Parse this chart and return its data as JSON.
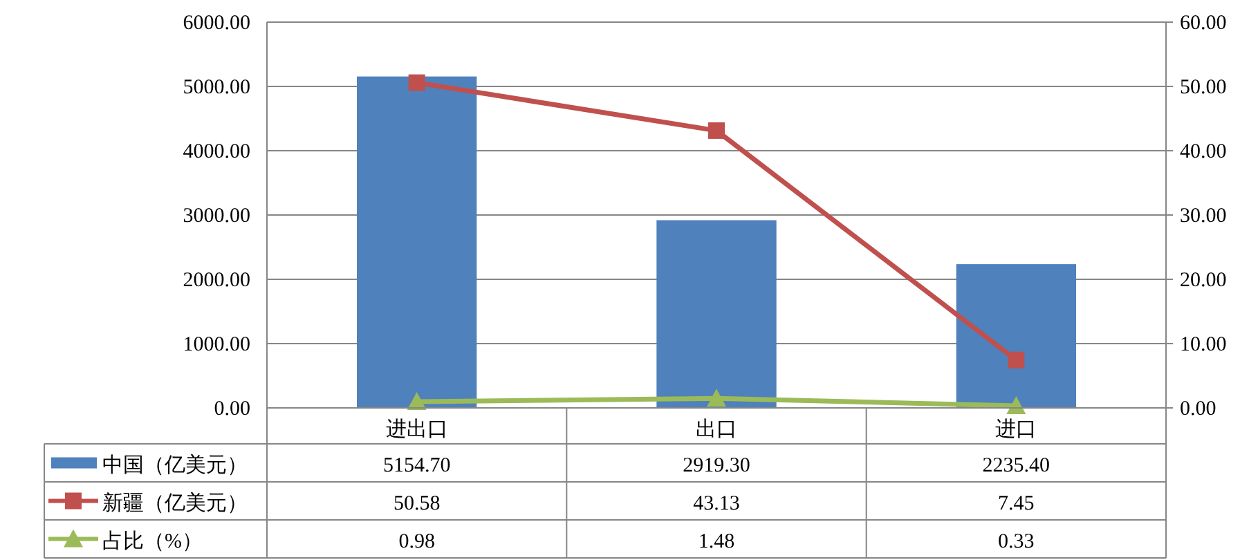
{
  "chart_data": {
    "type": "bar",
    "categories": [
      "进出口",
      "出口",
      "进口"
    ],
    "series": [
      {
        "name": "中国（亿美元）",
        "color": "#4f81bd",
        "values": [
          5154.7,
          2919.3,
          2235.4
        ],
        "value_labels": [
          "5154.70",
          "2919.30",
          "2235.40"
        ]
      },
      {
        "name": "新疆（亿美元）",
        "type": "line",
        "axis": "y2",
        "marker": "square",
        "color": "#c0504d",
        "values": [
          50.58,
          43.13,
          7.45
        ],
        "value_labels": [
          "50.58",
          "43.13",
          "7.45"
        ]
      },
      {
        "name": "占比（%）",
        "type": "line",
        "axis": "y2",
        "marker": "triangle",
        "color": "#9bbb59",
        "values": [
          0.98,
          1.48,
          0.33
        ],
        "value_labels": [
          "0.98",
          "1.48",
          "0.33"
        ]
      }
    ],
    "ylim": [
      0,
      6000
    ],
    "yticks": [
      {
        "value": 0,
        "label": "0.00"
      },
      {
        "value": 1000,
        "label": "1000.00"
      },
      {
        "value": 2000,
        "label": "2000.00"
      },
      {
        "value": 3000,
        "label": "3000.00"
      },
      {
        "value": 4000,
        "label": "4000.00"
      },
      {
        "value": 5000,
        "label": "5000.00"
      },
      {
        "value": 6000,
        "label": "6000.00"
      }
    ],
    "y2lim": [
      0,
      60
    ],
    "y2ticks": [
      {
        "value": 0,
        "label": "0.00"
      },
      {
        "value": 10,
        "label": "10.00"
      },
      {
        "value": 20,
        "label": "20.00"
      },
      {
        "value": 30,
        "label": "30.00"
      },
      {
        "value": 40,
        "label": "40.00"
      },
      {
        "value": 50,
        "label": "50.00"
      },
      {
        "value": 60,
        "label": "60.00"
      }
    ],
    "grid": "y",
    "legend": "bottom"
  }
}
